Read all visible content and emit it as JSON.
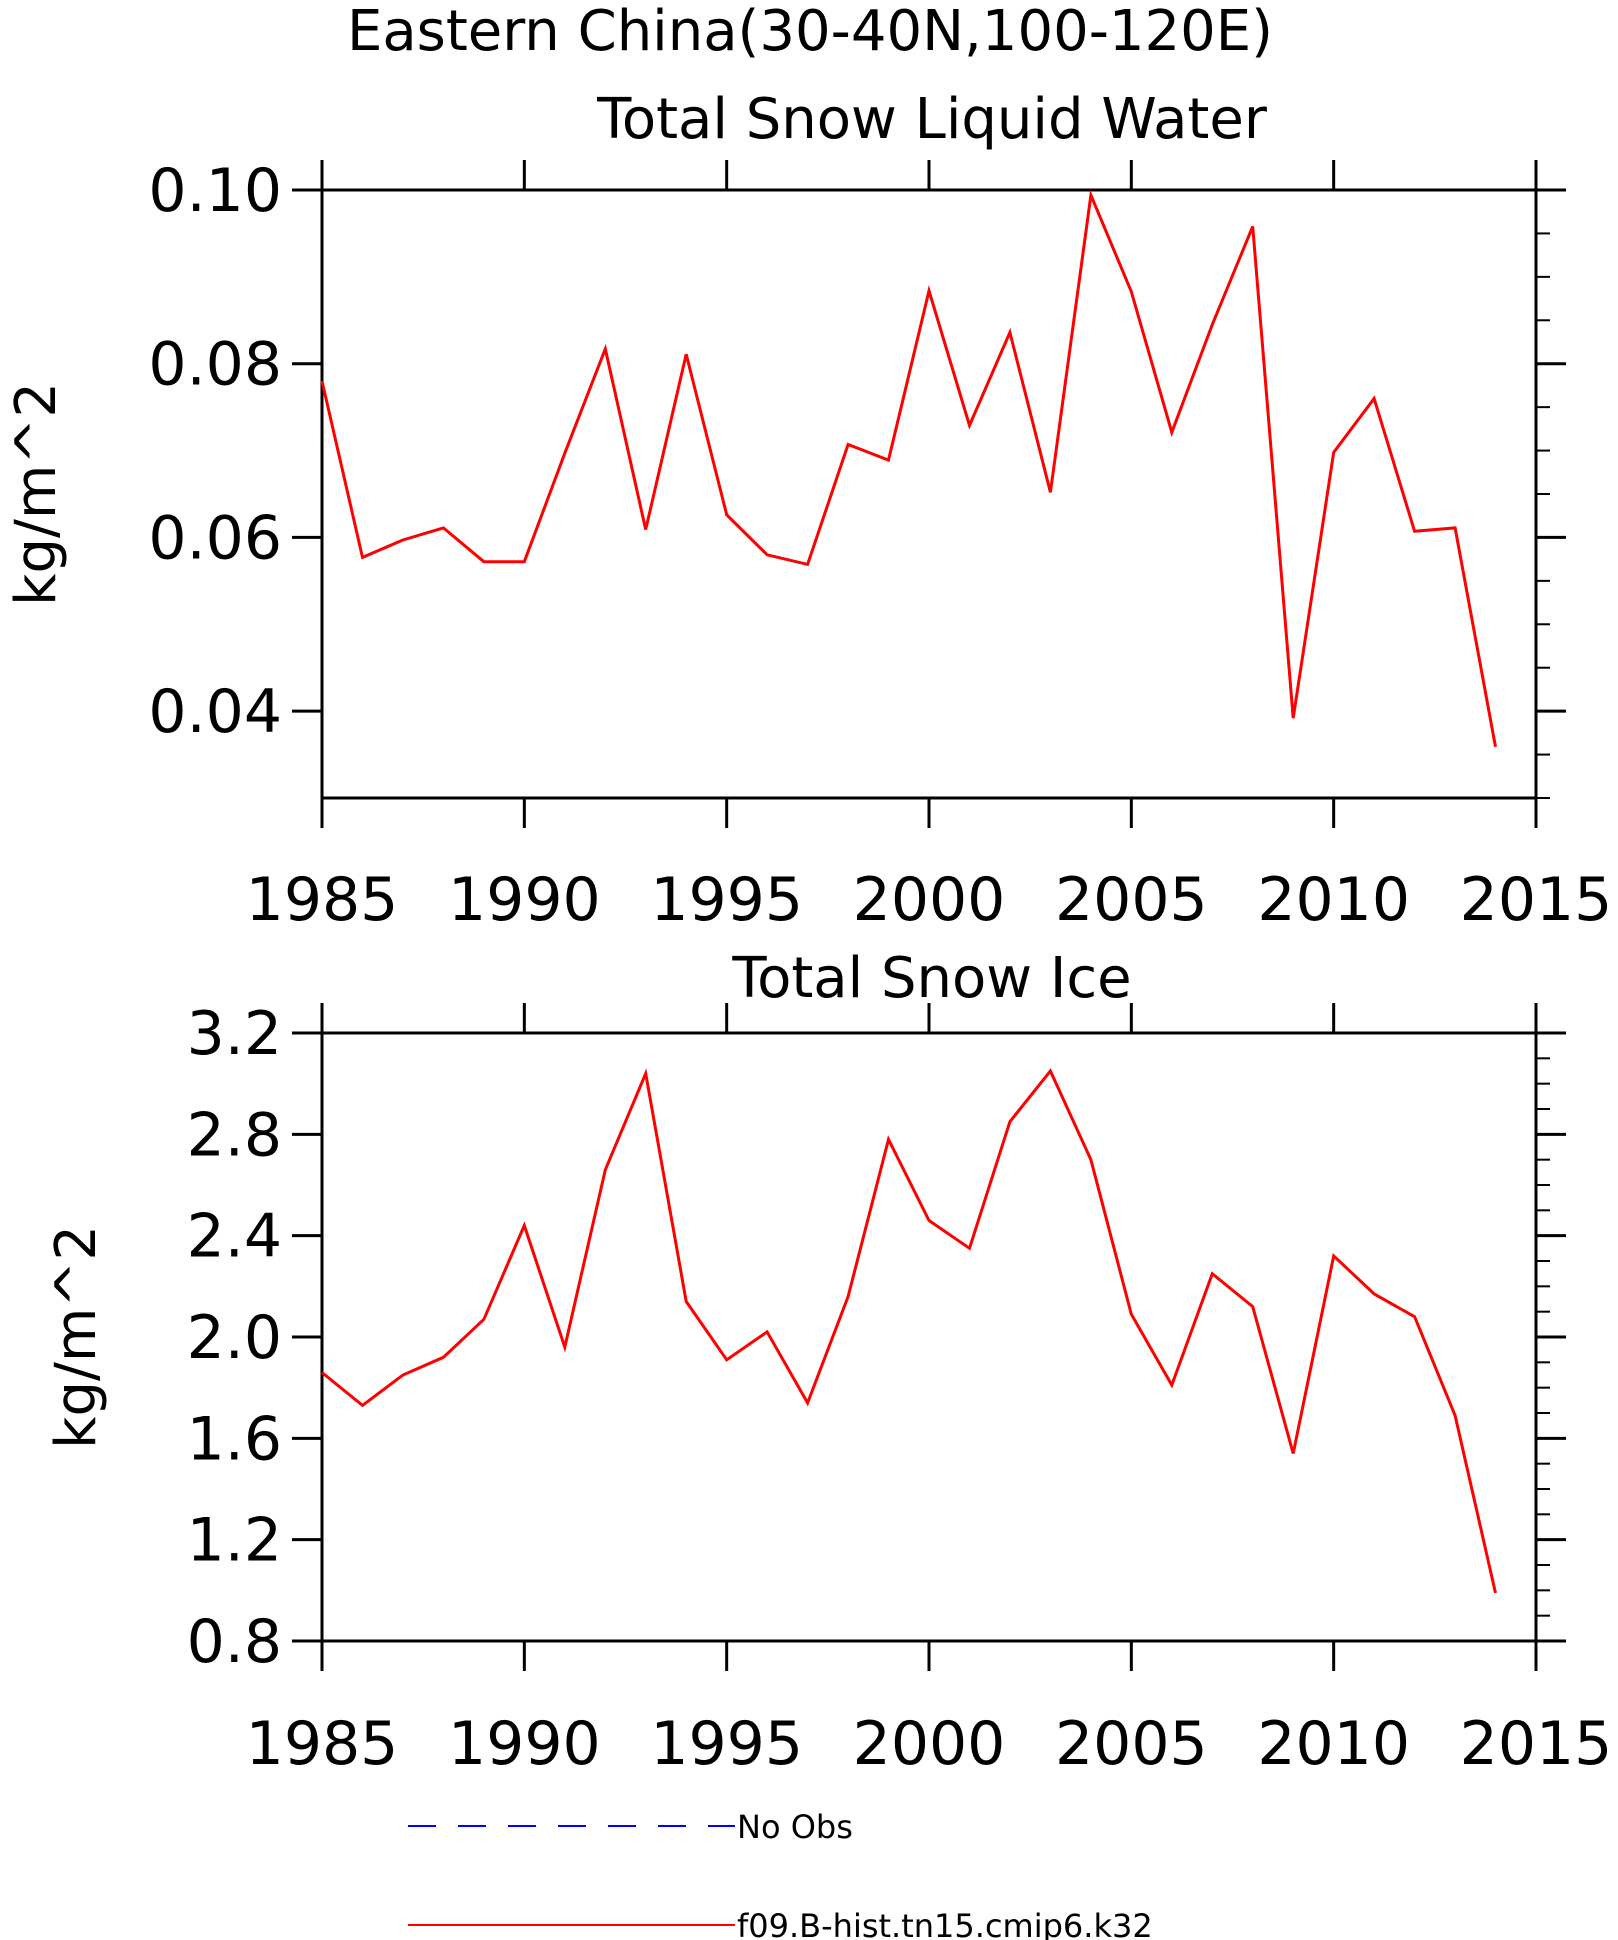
{
  "header": {
    "title": "Eastern China(30-40N,100-120E)"
  },
  "chart_data": [
    {
      "type": "line",
      "title": "Total Snow Liquid Water",
      "xlabel": "",
      "ylabel": "kg/m^2",
      "xlim": [
        1985,
        2015
      ],
      "ylim": [
        0.03,
        0.1
      ],
      "xticks": [
        1985,
        1990,
        1995,
        2000,
        2005,
        2010,
        2015
      ],
      "xtick_labels": [
        "1985",
        "1990",
        "1995",
        "2000",
        "2005",
        "2010",
        "2015"
      ],
      "yticks": [
        0.04,
        0.06,
        0.08,
        0.1
      ],
      "ytick_labels": [
        "0.04",
        "0.06",
        "0.08",
        "0.10"
      ],
      "y_minor_step": 0.005,
      "x": [
        1985,
        1986,
        1987,
        1988,
        1989,
        1990,
        1991,
        1992,
        1993,
        1994,
        1995,
        1996,
        1997,
        1998,
        1999,
        2000,
        2001,
        2002,
        2003,
        2004,
        2005,
        2006,
        2007,
        2008,
        2009,
        2010,
        2011,
        2012,
        2013,
        2014
      ],
      "series": [
        {
          "name": "f09.B-hist.tn15.cmip6.k32",
          "color": "#ff0000",
          "values": [
            0.078,
            0.0577,
            0.0597,
            0.0611,
            0.0572,
            0.0572,
            0.0697,
            0.0817,
            0.0609,
            0.0811,
            0.0626,
            0.058,
            0.0569,
            0.0707,
            0.0689,
            0.0884,
            0.0729,
            0.0836,
            0.0652,
            0.0994,
            0.0883,
            0.0721,
            0.0845,
            0.0958,
            0.0392,
            0.0698,
            0.076,
            0.0607,
            0.0611,
            0.0359
          ]
        }
      ]
    },
    {
      "type": "line",
      "title": "Total Snow Ice",
      "xlabel": "",
      "ylabel": "kg/m^2",
      "xlim": [
        1985,
        2015
      ],
      "ylim": [
        0.8,
        3.2
      ],
      "xticks": [
        1985,
        1990,
        1995,
        2000,
        2005,
        2010,
        2015
      ],
      "xtick_labels": [
        "1985",
        "1990",
        "1995",
        "2000",
        "2005",
        "2010",
        "2015"
      ],
      "yticks": [
        0.8,
        1.2,
        1.6,
        2.0,
        2.4,
        2.8,
        3.2
      ],
      "ytick_labels": [
        "0.8",
        "1.2",
        "1.6",
        "2.0",
        "2.4",
        "2.8",
        "3.2"
      ],
      "y_minor_step": 0.1,
      "x": [
        1985,
        1986,
        1987,
        1988,
        1989,
        1990,
        1991,
        1992,
        1993,
        1994,
        1995,
        1996,
        1997,
        1998,
        1999,
        2000,
        2001,
        2002,
        2003,
        2004,
        2005,
        2006,
        2007,
        2008,
        2009,
        2010,
        2011,
        2012,
        2013,
        2014
      ],
      "series": [
        {
          "name": "f09.B-hist.tn15.cmip6.k32",
          "color": "#ff0000",
          "values": [
            1.86,
            1.73,
            1.85,
            1.92,
            2.07,
            2.44,
            1.96,
            2.66,
            3.04,
            2.14,
            1.91,
            2.02,
            1.74,
            2.16,
            2.78,
            2.46,
            2.35,
            2.85,
            3.05,
            2.7,
            2.09,
            1.81,
            2.25,
            2.12,
            1.54,
            2.32,
            2.17,
            2.08,
            1.69,
            0.99
          ]
        }
      ]
    }
  ],
  "legend": {
    "items": [
      {
        "label": "No Obs",
        "color": "#0000ff",
        "style": "dashed"
      },
      {
        "label": "f09.B-hist.tn15.cmip6.k32",
        "color": "#ff0000",
        "style": "solid"
      }
    ]
  }
}
